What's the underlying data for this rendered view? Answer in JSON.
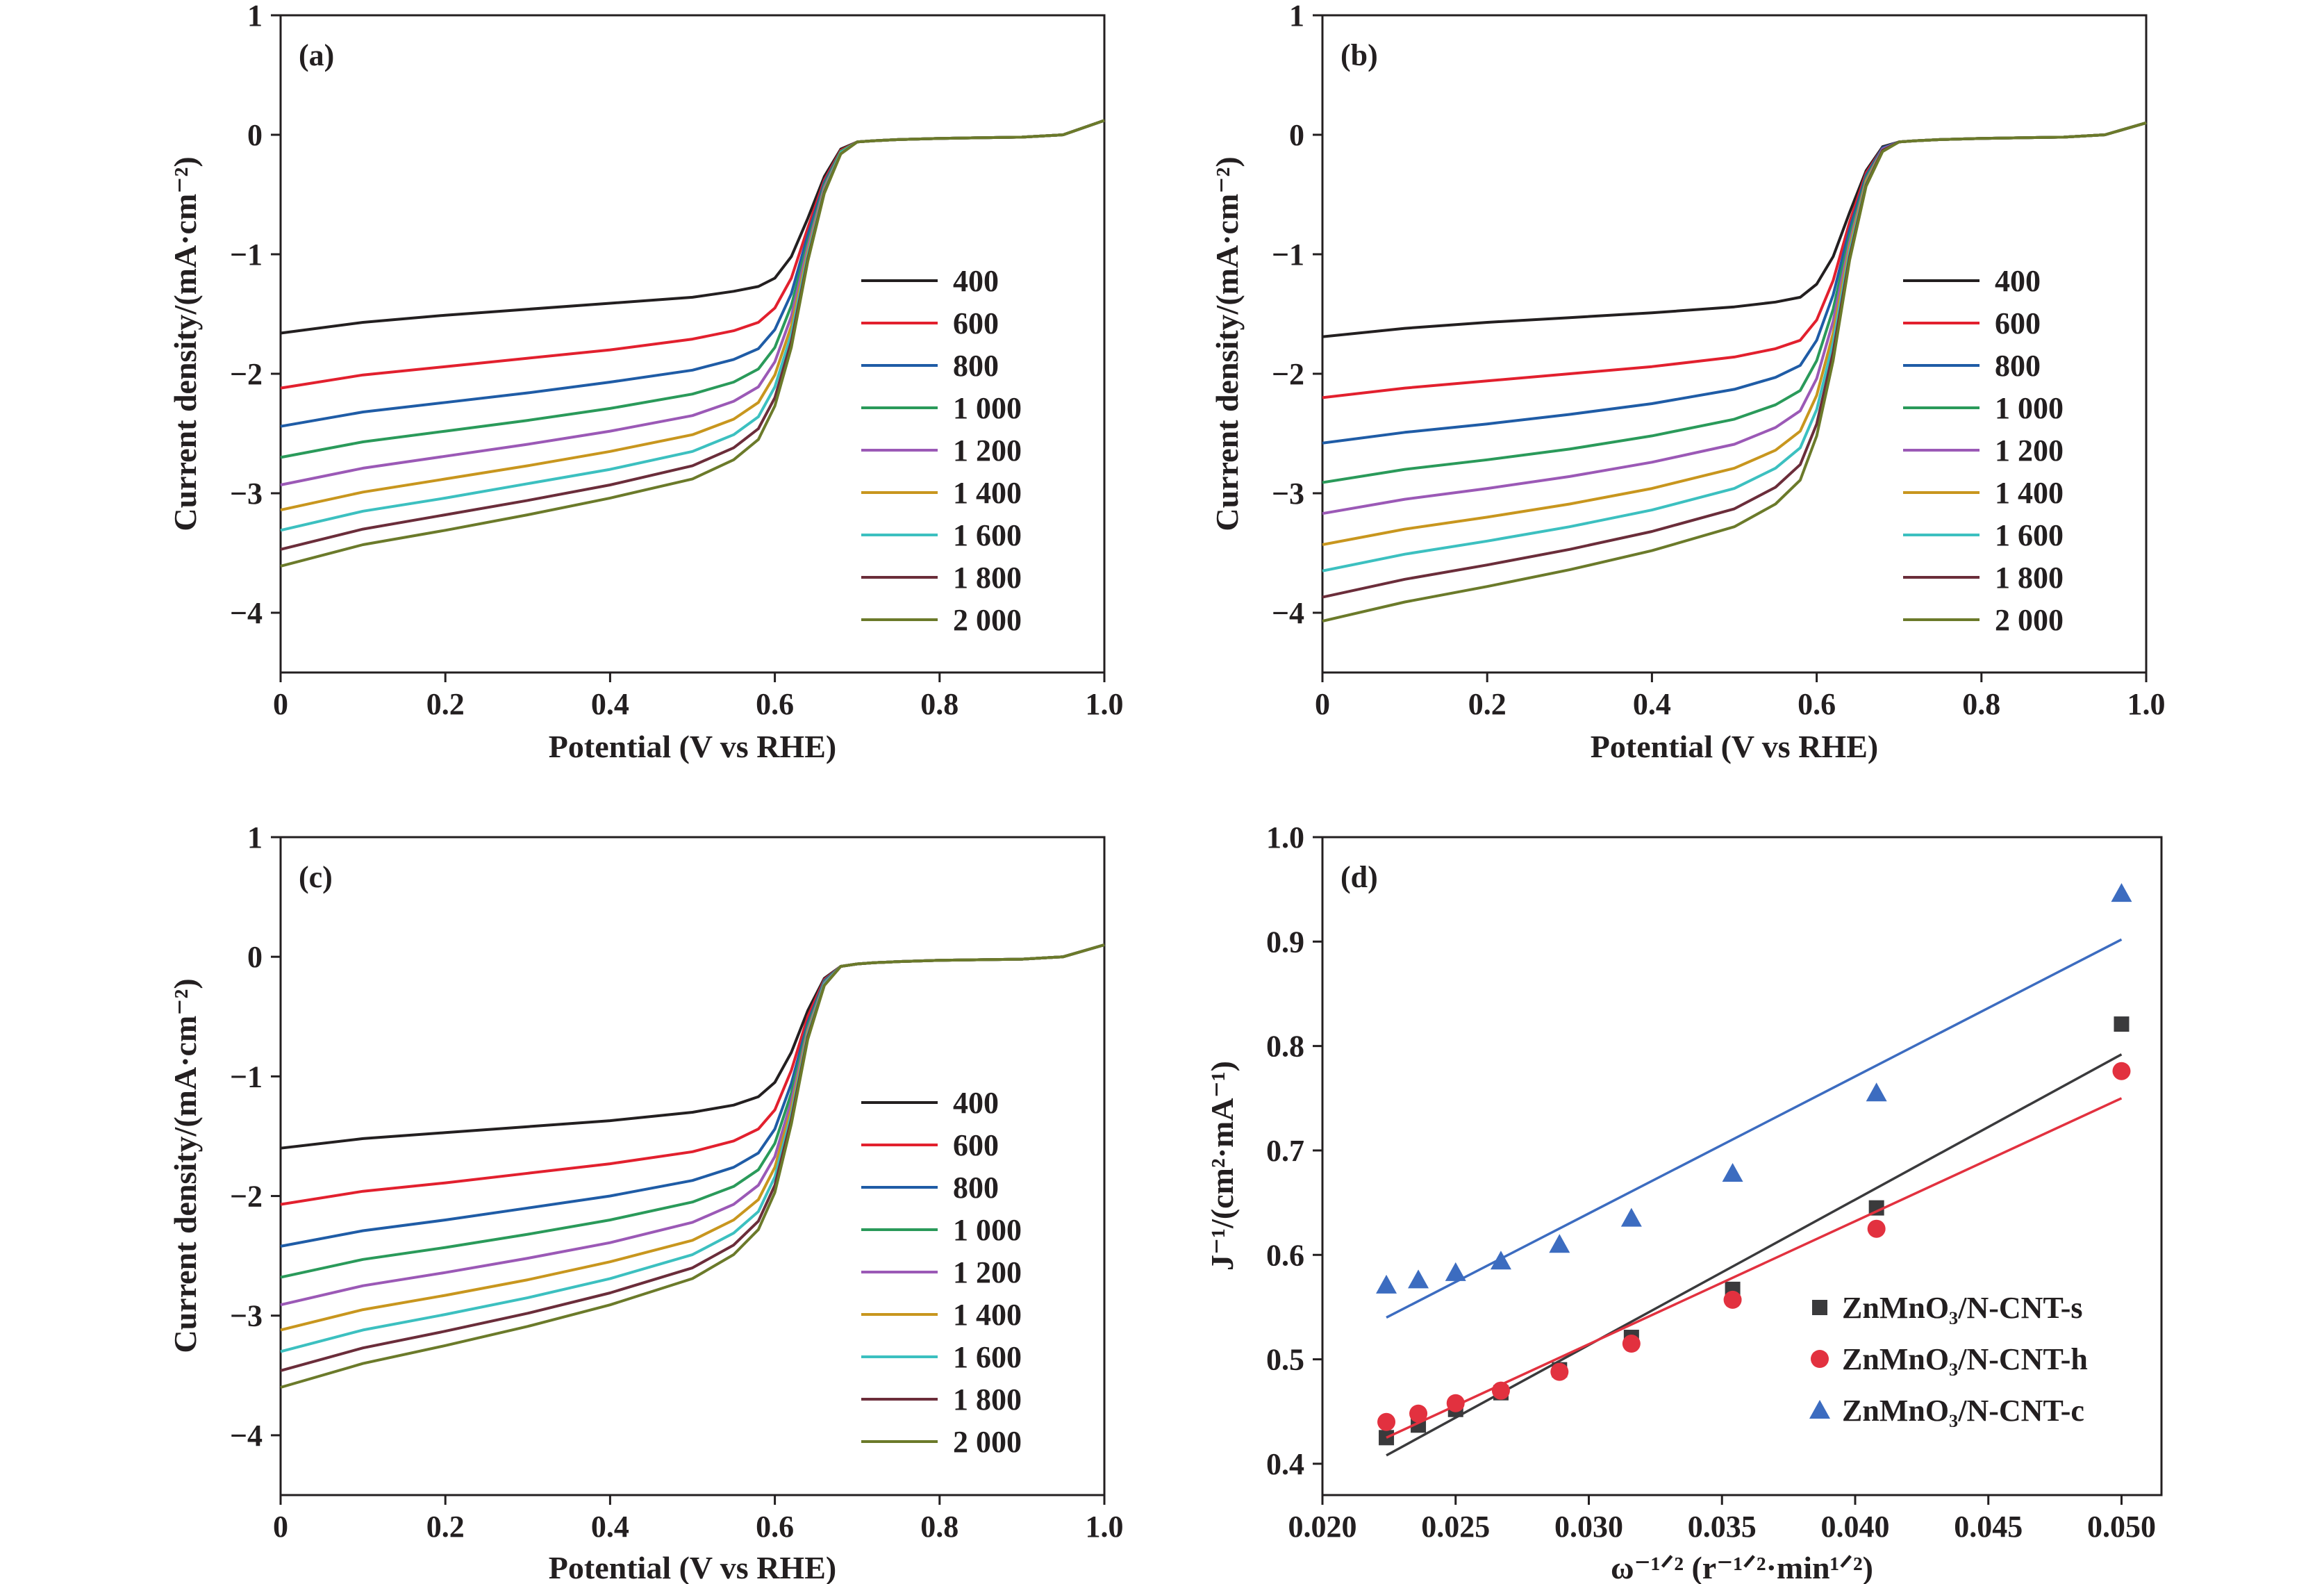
{
  "chart_data": [
    {
      "type": "line",
      "panel_label": "(a)",
      "xlabel": "Potential (V vs RHE)",
      "ylabel": "Current density/(mA·cm⁻²)",
      "xlim": [
        0,
        1.0
      ],
      "ylim": [
        -4.5,
        1
      ],
      "xticks": [
        "0",
        "0.2",
        "0.4",
        "0.6",
        "0.8",
        "1.0"
      ],
      "yticks": [
        "1",
        "0",
        "−1",
        "−2",
        "−3",
        "−4"
      ],
      "legend_position": "center-right",
      "x": [
        0,
        0.1,
        0.2,
        0.3,
        0.4,
        0.5,
        0.55,
        0.58,
        0.6,
        0.62,
        0.64,
        0.66,
        0.68,
        0.7,
        0.72,
        0.75,
        0.8,
        0.9,
        0.95,
        1.0
      ],
      "series": [
        {
          "name": "400",
          "color": "#231f20",
          "values": [
            -1.66,
            -1.57,
            -1.51,
            -1.46,
            -1.41,
            -1.36,
            -1.31,
            -1.27,
            -1.2,
            -1.02,
            -0.7,
            -0.35,
            -0.12,
            -0.06,
            -0.05,
            -0.04,
            -0.03,
            -0.02,
            0.0,
            0.12
          ]
        },
        {
          "name": "600",
          "color": "#e2202e",
          "values": [
            -2.12,
            -2.01,
            -1.94,
            -1.87,
            -1.8,
            -1.71,
            -1.64,
            -1.57,
            -1.45,
            -1.2,
            -0.78,
            -0.38,
            -0.13,
            -0.06,
            -0.05,
            -0.04,
            -0.03,
            -0.02,
            0.0,
            0.12
          ]
        },
        {
          "name": "800",
          "color": "#1f5ca6",
          "values": [
            -2.44,
            -2.32,
            -2.24,
            -2.16,
            -2.07,
            -1.97,
            -1.88,
            -1.79,
            -1.63,
            -1.33,
            -0.84,
            -0.4,
            -0.14,
            -0.06,
            -0.05,
            -0.04,
            -0.03,
            -0.02,
            0.0,
            0.12
          ]
        },
        {
          "name": "1 000",
          "color": "#2a9a5a",
          "values": [
            -2.7,
            -2.57,
            -2.48,
            -2.39,
            -2.29,
            -2.17,
            -2.07,
            -1.96,
            -1.78,
            -1.43,
            -0.9,
            -0.42,
            -0.14,
            -0.06,
            -0.05,
            -0.04,
            -0.03,
            -0.02,
            0.0,
            0.12
          ]
        },
        {
          "name": "1 200",
          "color": "#9b59b6",
          "values": [
            -2.93,
            -2.79,
            -2.69,
            -2.59,
            -2.48,
            -2.35,
            -2.23,
            -2.11,
            -1.9,
            -1.52,
            -0.94,
            -0.44,
            -0.15,
            -0.06,
            -0.05,
            -0.04,
            -0.03,
            -0.02,
            0.0,
            0.12
          ]
        },
        {
          "name": "1 400",
          "color": "#c8961e",
          "values": [
            -3.14,
            -2.99,
            -2.88,
            -2.77,
            -2.65,
            -2.51,
            -2.38,
            -2.24,
            -2.01,
            -1.6,
            -0.98,
            -0.46,
            -0.15,
            -0.06,
            -0.05,
            -0.04,
            -0.03,
            -0.02,
            0.0,
            0.12
          ]
        },
        {
          "name": "1 600",
          "color": "#3cc0c0",
          "values": [
            -3.31,
            -3.15,
            -3.04,
            -2.92,
            -2.8,
            -2.65,
            -2.51,
            -2.36,
            -2.11,
            -1.67,
            -1.01,
            -0.47,
            -0.15,
            -0.06,
            -0.05,
            -0.04,
            -0.03,
            -0.02,
            0.0,
            0.12
          ]
        },
        {
          "name": "1 800",
          "color": "#6b2d3a",
          "values": [
            -3.47,
            -3.3,
            -3.18,
            -3.06,
            -2.93,
            -2.77,
            -2.62,
            -2.46,
            -2.2,
            -1.73,
            -1.04,
            -0.48,
            -0.16,
            -0.06,
            -0.05,
            -0.04,
            -0.03,
            -0.02,
            0.0,
            0.12
          ]
        },
        {
          "name": "2 000",
          "color": "#6b7a2a",
          "values": [
            -3.61,
            -3.43,
            -3.31,
            -3.18,
            -3.04,
            -2.88,
            -2.72,
            -2.55,
            -2.27,
            -1.78,
            -1.06,
            -0.49,
            -0.16,
            -0.06,
            -0.05,
            -0.04,
            -0.03,
            -0.02,
            0.0,
            0.12
          ]
        }
      ]
    },
    {
      "type": "line",
      "panel_label": "(b)",
      "xlabel": "Potential (V vs RHE)",
      "ylabel": "Current density/(mA·cm⁻²)",
      "xlim": [
        0,
        1.0
      ],
      "ylim": [
        -4.5,
        1
      ],
      "xticks": [
        "0",
        "0.2",
        "0.4",
        "0.6",
        "0.8",
        "1.0"
      ],
      "yticks": [
        "1",
        "0",
        "−1",
        "−2",
        "−3",
        "−4"
      ],
      "legend_position": "center-right",
      "x": [
        0,
        0.1,
        0.2,
        0.3,
        0.4,
        0.5,
        0.55,
        0.58,
        0.6,
        0.62,
        0.64,
        0.66,
        0.68,
        0.7,
        0.72,
        0.75,
        0.8,
        0.9,
        0.95,
        1.0
      ],
      "series": [
        {
          "name": "400",
          "color": "#231f20",
          "values": [
            -1.69,
            -1.62,
            -1.57,
            -1.53,
            -1.49,
            -1.44,
            -1.4,
            -1.36,
            -1.25,
            -1.02,
            -0.65,
            -0.3,
            -0.1,
            -0.06,
            -0.05,
            -0.04,
            -0.03,
            -0.02,
            0.0,
            0.1
          ]
        },
        {
          "name": "600",
          "color": "#e2202e",
          "values": [
            -2.2,
            -2.12,
            -2.06,
            -2.0,
            -1.94,
            -1.86,
            -1.79,
            -1.72,
            -1.55,
            -1.22,
            -0.73,
            -0.32,
            -0.11,
            -0.06,
            -0.05,
            -0.04,
            -0.03,
            -0.02,
            0.0,
            0.1
          ]
        },
        {
          "name": "800",
          "color": "#1f5ca6",
          "values": [
            -2.58,
            -2.49,
            -2.42,
            -2.34,
            -2.25,
            -2.13,
            -2.03,
            -1.93,
            -1.72,
            -1.34,
            -0.79,
            -0.34,
            -0.11,
            -0.06,
            -0.05,
            -0.04,
            -0.03,
            -0.02,
            0.0,
            0.1
          ]
        },
        {
          "name": "1 000",
          "color": "#2a9a5a",
          "values": [
            -2.91,
            -2.8,
            -2.72,
            -2.63,
            -2.52,
            -2.38,
            -2.26,
            -2.14,
            -1.89,
            -1.46,
            -0.85,
            -0.36,
            -0.12,
            -0.06,
            -0.05,
            -0.04,
            -0.03,
            -0.02,
            0.0,
            0.1
          ]
        },
        {
          "name": "1 200",
          "color": "#9b59b6",
          "values": [
            -3.17,
            -3.05,
            -2.96,
            -2.86,
            -2.74,
            -2.59,
            -2.45,
            -2.31,
            -2.04,
            -1.56,
            -0.9,
            -0.38,
            -0.12,
            -0.06,
            -0.05,
            -0.04,
            -0.03,
            -0.02,
            0.0,
            0.1
          ]
        },
        {
          "name": "1 400",
          "color": "#c8961e",
          "values": [
            -3.43,
            -3.3,
            -3.2,
            -3.09,
            -2.96,
            -2.79,
            -2.64,
            -2.48,
            -2.18,
            -1.66,
            -0.94,
            -0.39,
            -0.13,
            -0.06,
            -0.05,
            -0.04,
            -0.03,
            -0.02,
            0.0,
            0.1
          ]
        },
        {
          "name": "1 600",
          "color": "#3cc0c0",
          "values": [
            -3.65,
            -3.51,
            -3.4,
            -3.28,
            -3.14,
            -2.96,
            -2.79,
            -2.62,
            -2.3,
            -1.74,
            -0.98,
            -0.41,
            -0.13,
            -0.06,
            -0.05,
            -0.04,
            -0.03,
            -0.02,
            0.0,
            0.1
          ]
        },
        {
          "name": "1 800",
          "color": "#6b2d3a",
          "values": [
            -3.87,
            -3.72,
            -3.6,
            -3.47,
            -3.32,
            -3.13,
            -2.95,
            -2.76,
            -2.42,
            -1.82,
            -1.02,
            -0.42,
            -0.13,
            -0.06,
            -0.05,
            -0.04,
            -0.03,
            -0.02,
            0.0,
            0.1
          ]
        },
        {
          "name": "2 000",
          "color": "#6b7a2a",
          "values": [
            -4.07,
            -3.91,
            -3.78,
            -3.64,
            -3.48,
            -3.28,
            -3.09,
            -2.89,
            -2.52,
            -1.89,
            -1.05,
            -0.43,
            -0.14,
            -0.06,
            -0.05,
            -0.04,
            -0.03,
            -0.02,
            0.0,
            0.1
          ]
        }
      ]
    },
    {
      "type": "line",
      "panel_label": "(c)",
      "xlabel": "Potential (V vs RHE)",
      "ylabel": "Current density/(mA·cm⁻²)",
      "xlim": [
        0,
        1.0
      ],
      "ylim": [
        -4.5,
        1
      ],
      "xticks": [
        "0",
        "0.2",
        "0.4",
        "0.6",
        "0.8",
        "1.0"
      ],
      "yticks": [
        "1",
        "0",
        "−1",
        "−2",
        "−3",
        "−4"
      ],
      "legend_position": "center-right",
      "x": [
        0,
        0.1,
        0.2,
        0.3,
        0.4,
        0.5,
        0.55,
        0.58,
        0.6,
        0.62,
        0.64,
        0.66,
        0.68,
        0.7,
        0.72,
        0.75,
        0.8,
        0.9,
        0.95,
        1.0
      ],
      "series": [
        {
          "name": "400",
          "color": "#231f20",
          "values": [
            -1.6,
            -1.52,
            -1.47,
            -1.42,
            -1.37,
            -1.3,
            -1.24,
            -1.17,
            -1.05,
            -0.8,
            -0.45,
            -0.18,
            -0.08,
            -0.06,
            -0.05,
            -0.04,
            -0.03,
            -0.02,
            0.0,
            0.1
          ]
        },
        {
          "name": "600",
          "color": "#e2202e",
          "values": [
            -2.07,
            -1.96,
            -1.89,
            -1.81,
            -1.73,
            -1.63,
            -1.54,
            -1.44,
            -1.28,
            -0.95,
            -0.5,
            -0.19,
            -0.08,
            -0.06,
            -0.05,
            -0.04,
            -0.03,
            -0.02,
            0.0,
            0.1
          ]
        },
        {
          "name": "800",
          "color": "#1f5ca6",
          "values": [
            -2.42,
            -2.29,
            -2.2,
            -2.1,
            -2.0,
            -1.87,
            -1.76,
            -1.64,
            -1.44,
            -1.06,
            -0.55,
            -0.2,
            -0.08,
            -0.06,
            -0.05,
            -0.04,
            -0.03,
            -0.02,
            0.0,
            0.1
          ]
        },
        {
          "name": "1 000",
          "color": "#2a9a5a",
          "values": [
            -2.68,
            -2.53,
            -2.43,
            -2.32,
            -2.2,
            -2.05,
            -1.92,
            -1.78,
            -1.56,
            -1.14,
            -0.58,
            -0.21,
            -0.08,
            -0.06,
            -0.05,
            -0.04,
            -0.03,
            -0.02,
            0.0,
            0.1
          ]
        },
        {
          "name": "1 200",
          "color": "#9b59b6",
          "values": [
            -2.91,
            -2.75,
            -2.64,
            -2.52,
            -2.39,
            -2.22,
            -2.07,
            -1.91,
            -1.67,
            -1.21,
            -0.61,
            -0.22,
            -0.08,
            -0.06,
            -0.05,
            -0.04,
            -0.03,
            -0.02,
            0.0,
            0.1
          ]
        },
        {
          "name": "1 400",
          "color": "#c8961e",
          "values": [
            -3.12,
            -2.95,
            -2.83,
            -2.7,
            -2.55,
            -2.37,
            -2.2,
            -2.03,
            -1.76,
            -1.27,
            -0.63,
            -0.23,
            -0.08,
            -0.06,
            -0.05,
            -0.04,
            -0.03,
            -0.02,
            0.0,
            0.1
          ]
        },
        {
          "name": "1 600",
          "color": "#3cc0c0",
          "values": [
            -3.3,
            -3.12,
            -2.99,
            -2.85,
            -2.69,
            -2.49,
            -2.31,
            -2.13,
            -1.84,
            -1.32,
            -0.65,
            -0.23,
            -0.08,
            -0.06,
            -0.05,
            -0.04,
            -0.03,
            -0.02,
            0.0,
            0.1
          ]
        },
        {
          "name": "1 800",
          "color": "#6b2d3a",
          "values": [
            -3.46,
            -3.27,
            -3.13,
            -2.98,
            -2.81,
            -2.6,
            -2.41,
            -2.21,
            -1.91,
            -1.36,
            -0.67,
            -0.24,
            -0.08,
            -0.06,
            -0.05,
            -0.04,
            -0.03,
            -0.02,
            0.0,
            0.1
          ]
        },
        {
          "name": "2 000",
          "color": "#6b7a2a",
          "values": [
            -3.6,
            -3.4,
            -3.25,
            -3.09,
            -2.91,
            -2.69,
            -2.49,
            -2.28,
            -1.97,
            -1.4,
            -0.69,
            -0.24,
            -0.08,
            -0.06,
            -0.05,
            -0.04,
            -0.03,
            -0.02,
            0.0,
            0.1
          ]
        }
      ]
    },
    {
      "type": "scatter",
      "panel_label": "(d)",
      "xlabel": "ω⁻¹ᐟ² (r⁻¹ᐟ²·min¹ᐟ²)",
      "ylabel": "J⁻¹/(cm²·mA⁻¹)",
      "xlim": [
        0.02,
        0.0515
      ],
      "ylim": [
        0.37,
        1.0
      ],
      "xticks": [
        "0.020",
        "0.025",
        "0.030",
        "0.035",
        "0.040",
        "0.045",
        "0.050"
      ],
      "yticks": [
        "1.0",
        "0.9",
        "0.8",
        "0.7",
        "0.6",
        "0.5",
        "0.4"
      ],
      "legend_position": "bottom-right",
      "x": [
        0.0224,
        0.0236,
        0.025,
        0.0267,
        0.0289,
        0.0316,
        0.0354,
        0.0408,
        0.05
      ],
      "series": [
        {
          "name": "ZnMnO₃/N-CNT-s",
          "color": "#3a3a3c",
          "marker": "square",
          "values": [
            0.425,
            0.437,
            0.452,
            0.468,
            0.49,
            0.521,
            0.567,
            0.645,
            0.821
          ],
          "fit": [
            [
              0.0224,
              0.408
            ],
            [
              0.05,
              0.792
            ]
          ]
        },
        {
          "name": "ZnMnO₃/N-CNT-h",
          "color": "#e2313f",
          "marker": "circle",
          "values": [
            0.44,
            0.448,
            0.458,
            0.47,
            0.488,
            0.515,
            0.557,
            0.625,
            0.776
          ],
          "fit": [
            [
              0.0224,
              0.425
            ],
            [
              0.05,
              0.75
            ]
          ]
        },
        {
          "name": "ZnMnO₃/N-CNT-c",
          "color": "#3c6cc0",
          "marker": "triangle",
          "values": [
            0.571,
            0.576,
            0.583,
            0.594,
            0.61,
            0.635,
            0.678,
            0.755,
            0.946
          ],
          "fit": [
            [
              0.0224,
              0.54
            ],
            [
              0.05,
              0.902
            ]
          ]
        }
      ]
    }
  ]
}
